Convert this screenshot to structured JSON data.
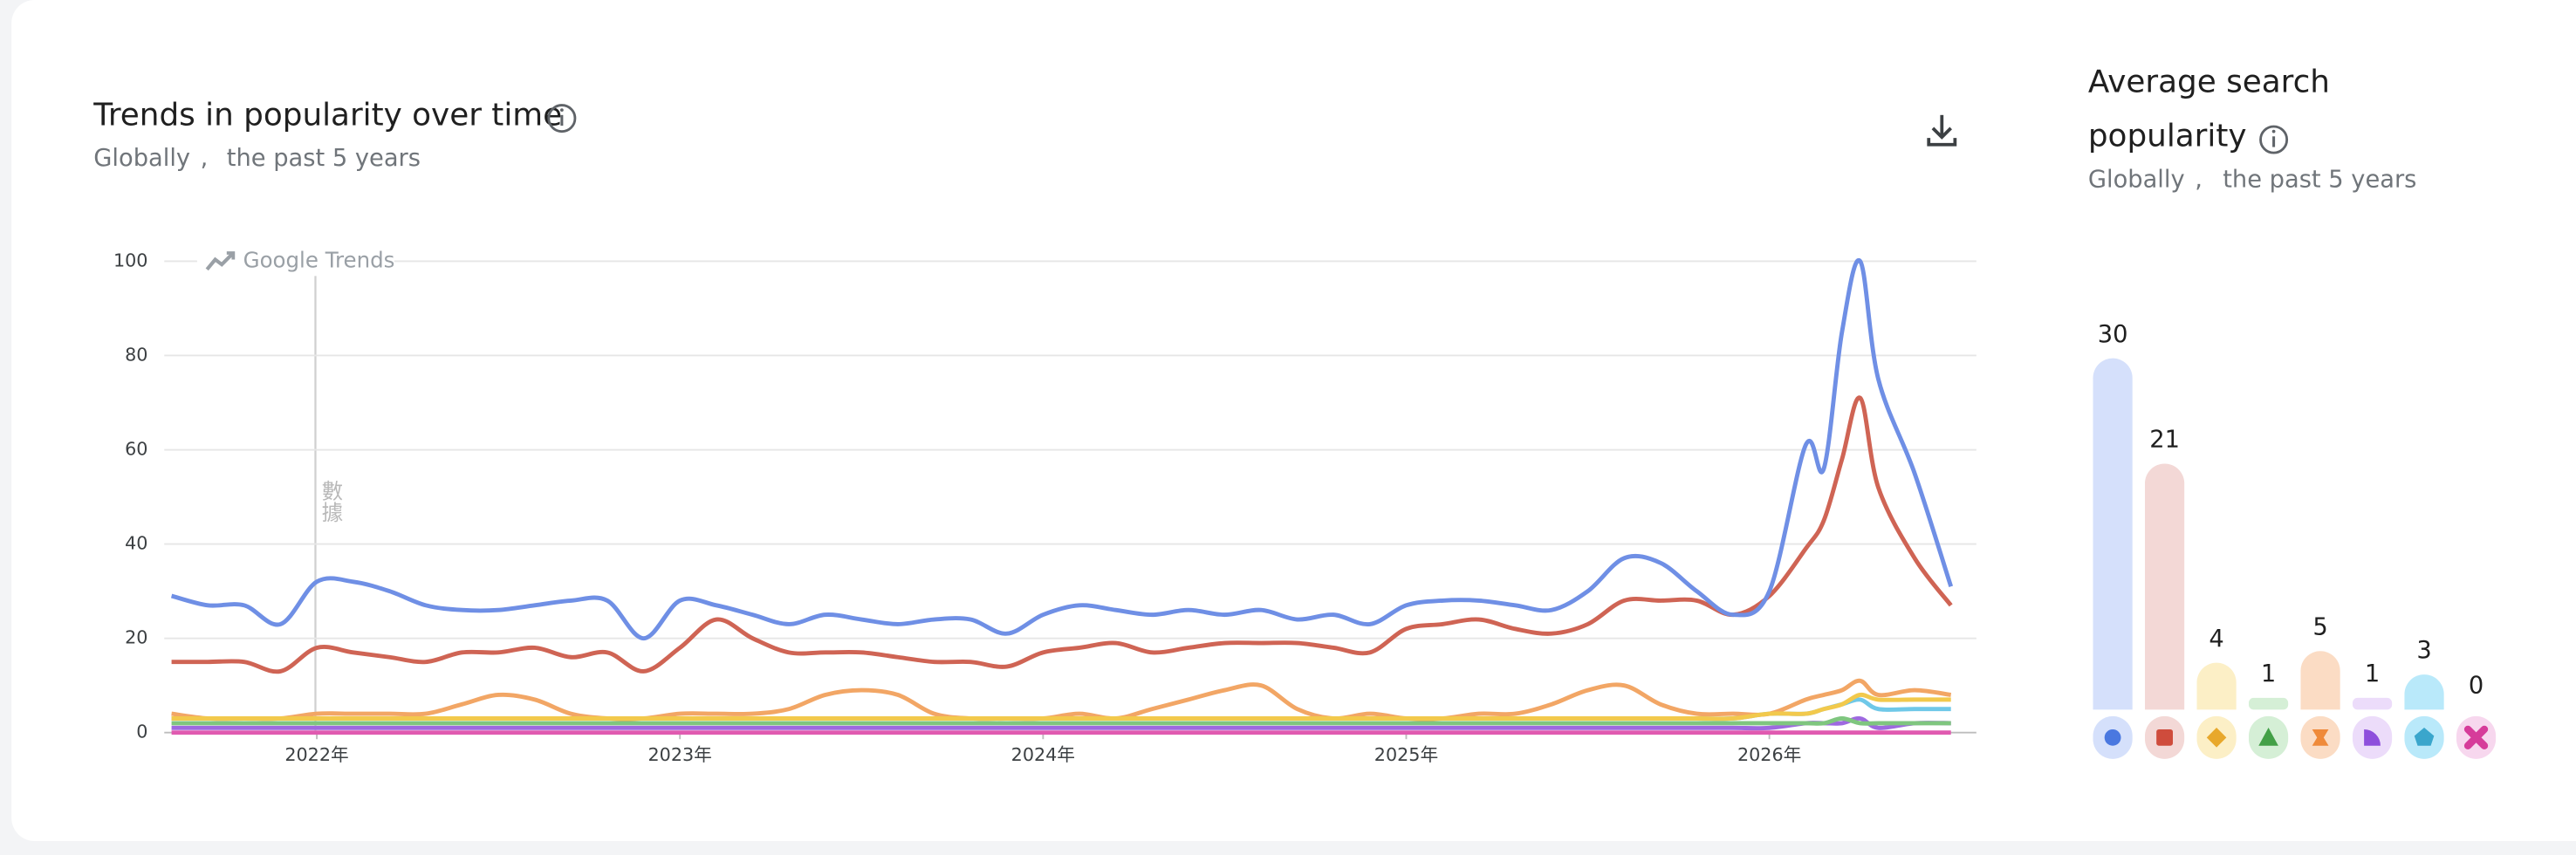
{
  "chart_data": [
    {
      "type": "line",
      "title": "Trends in popularity over time",
      "location": "Globally",
      "separator": ",",
      "period": "the past 5 years",
      "watermark": "Google Trends",
      "annotation": "數據",
      "x": [
        2021.6,
        2021.7,
        2021.8,
        2021.9,
        2022.0,
        2022.1,
        2022.2,
        2022.3,
        2022.4,
        2022.5,
        2022.6,
        2022.7,
        2022.8,
        2022.9,
        2023.0,
        2023.1,
        2023.2,
        2023.3,
        2023.4,
        2023.5,
        2023.6,
        2023.7,
        2023.8,
        2023.9,
        2024.0,
        2024.1,
        2024.2,
        2024.3,
        2024.4,
        2024.5,
        2024.6,
        2024.7,
        2024.8,
        2024.9,
        2025.0,
        2025.1,
        2025.2,
        2025.3,
        2025.4,
        2025.5,
        2025.6,
        2025.7,
        2025.8,
        2025.9,
        2026.0,
        2026.1,
        2026.15,
        2026.2,
        2026.25,
        2026.3,
        2026.4,
        2026.5
      ],
      "series": [
        {
          "color": "#6f8fe5",
          "values": [
            29,
            27,
            27,
            23,
            32,
            32,
            30,
            27,
            26,
            26,
            27,
            28,
            28,
            20,
            28,
            27,
            25,
            23,
            25,
            24,
            23,
            24,
            24,
            21,
            25,
            27,
            26,
            25,
            26,
            25,
            26,
            24,
            25,
            23,
            27,
            28,
            28,
            27,
            26,
            30,
            37,
            36,
            30,
            25,
            30,
            61,
            56,
            85,
            100,
            75,
            55,
            31
          ]
        },
        {
          "color": "#cf6454",
          "values": [
            15,
            15,
            15,
            13,
            18,
            17,
            16,
            15,
            17,
            17,
            18,
            16,
            17,
            13,
            18,
            24,
            20,
            17,
            17,
            17,
            16,
            15,
            15,
            14,
            17,
            18,
            19,
            17,
            18,
            19,
            19,
            19,
            18,
            17,
            22,
            23,
            24,
            22,
            21,
            23,
            28,
            28,
            28,
            25,
            29,
            39,
            45,
            58,
            71,
            52,
            37,
            27
          ]
        },
        {
          "color": "#f2c94c",
          "values": [
            3,
            3,
            3,
            3,
            3,
            3,
            3,
            3,
            3,
            3,
            3,
            3,
            3,
            3,
            3,
            3,
            3,
            3,
            3,
            3,
            3,
            3,
            3,
            3,
            3,
            3,
            3,
            3,
            3,
            3,
            3,
            3,
            3,
            3,
            3,
            3,
            3,
            3,
            3,
            3,
            3,
            3,
            3,
            3,
            4,
            4,
            5,
            6,
            8,
            7,
            7,
            7
          ]
        },
        {
          "color": "#7fc67f",
          "values": [
            2,
            2,
            2,
            2,
            2,
            2,
            2,
            2,
            2,
            2,
            2,
            2,
            2,
            2,
            2,
            2,
            2,
            2,
            2,
            2,
            2,
            2,
            2,
            2,
            2,
            2,
            2,
            2,
            2,
            2,
            2,
            2,
            2,
            2,
            2,
            2,
            2,
            2,
            2,
            2,
            2,
            2,
            2,
            2,
            2,
            2,
            2,
            3,
            2,
            2,
            2,
            2
          ]
        },
        {
          "color": "#f2a665",
          "values": [
            4,
            3,
            3,
            3,
            4,
            4,
            4,
            4,
            6,
            8,
            7,
            4,
            3,
            3,
            4,
            4,
            4,
            5,
            8,
            9,
            8,
            4,
            3,
            3,
            3,
            4,
            3,
            5,
            7,
            9,
            10,
            5,
            3,
            4,
            3,
            3,
            4,
            4,
            6,
            9,
            10,
            6,
            4,
            4,
            4,
            7,
            8,
            9,
            11,
            8,
            9,
            8
          ]
        },
        {
          "color": "#9e69e0",
          "values": [
            1,
            1,
            1,
            1,
            1,
            1,
            1,
            1,
            1,
            1,
            1,
            1,
            1,
            1,
            1,
            1,
            1,
            1,
            1,
            1,
            1,
            1,
            1,
            1,
            1,
            1,
            1,
            1,
            1,
            1,
            1,
            1,
            1,
            1,
            1,
            1,
            1,
            1,
            1,
            1,
            1,
            1,
            1,
            1,
            1,
            2,
            2,
            2,
            3,
            1,
            2,
            2
          ]
        },
        {
          "color": "#6fc8e8",
          "values": [
            3,
            3,
            3,
            3,
            3,
            3,
            3,
            3,
            3,
            3,
            3,
            3,
            3,
            3,
            3,
            3,
            3,
            3,
            3,
            3,
            3,
            3,
            3,
            3,
            3,
            3,
            3,
            3,
            3,
            3,
            3,
            3,
            3,
            3,
            3,
            3,
            3,
            3,
            3,
            3,
            3,
            3,
            3,
            3,
            4,
            4,
            5,
            6,
            7,
            5,
            5,
            5
          ]
        },
        {
          "color": "#e05ab0",
          "values": [
            0,
            0,
            0,
            0,
            0,
            0,
            0,
            0,
            0,
            0,
            0,
            0,
            0,
            0,
            0,
            0,
            0,
            0,
            0,
            0,
            0,
            0,
            0,
            0,
            0,
            0,
            0,
            0,
            0,
            0,
            0,
            0,
            0,
            0,
            0,
            0,
            0,
            0,
            0,
            0,
            0,
            0,
            0,
            0,
            0,
            0,
            0,
            0,
            0,
            0,
            0,
            0
          ]
        }
      ],
      "xlim": [
        2021.58,
        2026.57
      ],
      "xticks": [
        {
          "value": 2022,
          "label": "2022年"
        },
        {
          "value": 2023,
          "label": "2023年"
        },
        {
          "value": 2024,
          "label": "2024年"
        },
        {
          "value": 2025,
          "label": "2025年"
        },
        {
          "value": 2026,
          "label": "2026年"
        }
      ],
      "ylim": [
        0,
        100
      ],
      "yticks": [
        0,
        20,
        40,
        60,
        80,
        100
      ],
      "grid": true
    },
    {
      "type": "bar",
      "title": "Average search popularity",
      "location": "Globally",
      "separator": ",",
      "period": "the past 5 years",
      "values": [
        30,
        21,
        4,
        1,
        5,
        1,
        3,
        0
      ],
      "colors": [
        "#d5e0fb",
        "#f3d8d6",
        "#fcefc6",
        "#d5efd6",
        "#fbdcc4",
        "#ecdcfa",
        "#b9e9fa",
        "#f7d7ee"
      ],
      "icon_colors": [
        "#4a78e0",
        "#cf4c3c",
        "#e8a82c",
        "#43a047",
        "#ef8a3a",
        "#8e4fdc",
        "#3aa6cc",
        "#d63c9a"
      ]
    }
  ]
}
